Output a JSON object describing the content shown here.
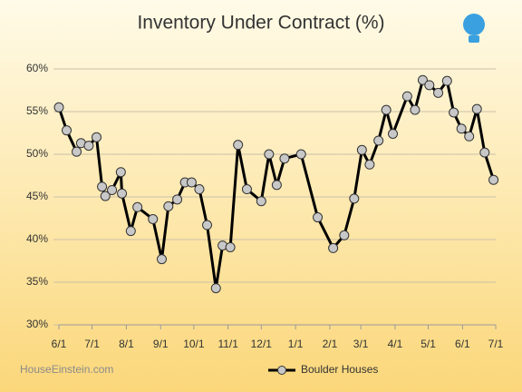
{
  "chart_data": {
    "type": "line",
    "title": "Inventory Under Contract (%)",
    "x": [
      0,
      7,
      16,
      20,
      27,
      34,
      39,
      42,
      48,
      56,
      57,
      65,
      71,
      85,
      93,
      99,
      107,
      114,
      120,
      127,
      134,
      142,
      148,
      155,
      162,
      170,
      183,
      190,
      197,
      204,
      219,
      234,
      248,
      258,
      267,
      274,
      281,
      289,
      296,
      302,
      315,
      322,
      329,
      335,
      343,
      351,
      357,
      364,
      371,
      378,
      385,
      393
    ],
    "series": [
      {
        "name": "Boulder Houses",
        "color": "#000000",
        "marker_color": "#c8c8c8",
        "values": [
          55.5,
          52.8,
          50.3,
          51.3,
          51.0,
          52.0,
          46.2,
          45.1,
          45.8,
          47.9,
          45.4,
          41.0,
          43.8,
          42.4,
          37.7,
          43.9,
          44.7,
          46.7,
          46.7,
          45.9,
          41.7,
          34.3,
          39.3,
          39.1,
          51.1,
          45.9,
          44.5,
          50.0,
          46.4,
          49.5,
          50.0,
          42.6,
          39.0,
          40.5,
          44.8,
          50.5,
          48.8,
          51.6,
          55.2,
          52.4,
          56.8,
          55.2,
          58.7,
          58.1,
          57.2,
          58.6,
          54.9,
          53.0,
          52.1,
          55.3,
          50.2,
          47.0
        ]
      }
    ],
    "xlim": [
      0,
      395
    ],
    "xticks": [
      {
        "value": 0,
        "label": "6/1"
      },
      {
        "value": 30,
        "label": "7/1"
      },
      {
        "value": 61,
        "label": "8/1"
      },
      {
        "value": 92,
        "label": "9/1"
      },
      {
        "value": 122,
        "label": "10/1"
      },
      {
        "value": 153,
        "label": "11/1"
      },
      {
        "value": 183,
        "label": "12/1"
      },
      {
        "value": 214,
        "label": "1/1"
      },
      {
        "value": 245,
        "label": "2/1"
      },
      {
        "value": 273,
        "label": "3/1"
      },
      {
        "value": 304,
        "label": "4/1"
      },
      {
        "value": 334,
        "label": "5/1"
      },
      {
        "value": 365,
        "label": "6/1"
      },
      {
        "value": 395,
        "label": "7/1"
      }
    ],
    "ylim": [
      30,
      60
    ],
    "yticks": [
      {
        "value": 30,
        "label": "30%"
      },
      {
        "value": 35,
        "label": "35%"
      },
      {
        "value": 40,
        "label": "40%"
      },
      {
        "value": 45,
        "label": "45%"
      },
      {
        "value": 50,
        "label": "50%"
      },
      {
        "value": 55,
        "label": "55%"
      },
      {
        "value": 60,
        "label": "60%"
      }
    ],
    "grid": true,
    "legend": "bottom",
    "source": "HouseEinstein.com"
  }
}
